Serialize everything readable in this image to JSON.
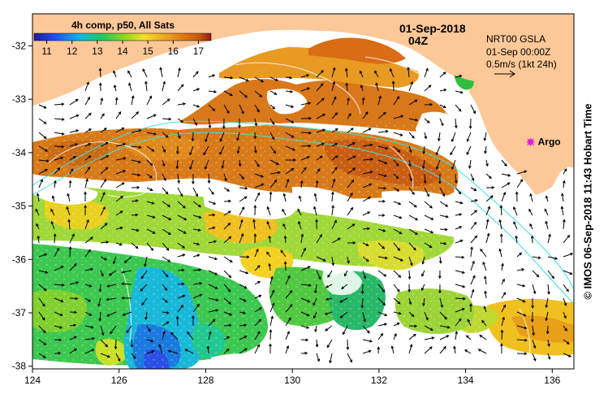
{
  "map": {
    "title_date": "01-Sep-2018",
    "title_time": "04Z",
    "colorbar_title": "4h comp, p50, All Sats",
    "colorbar_ticks": [
      "11",
      "12",
      "13",
      "14",
      "15",
      "16",
      "17"
    ],
    "colorbar_range": [
      10.5,
      17.5
    ],
    "gsla_label": "NRT00 GSLA",
    "gsla_time": "01-Sep 00:00Z",
    "vector_scale_label": "0.5m/s (1kt 24h)",
    "argo_label": "Argo",
    "side_credit": "© IMOS 06-Sep-2018 11:43 Hobart Time",
    "lon_ticks": [
      "124",
      "126",
      "128",
      "130",
      "132",
      "134",
      "136"
    ],
    "lat_ticks": [
      "-32",
      "-33",
      "-34",
      "-35",
      "-36",
      "-37",
      "-38"
    ],
    "lon_range": [
      124,
      136.5
    ],
    "lat_range": [
      -38.05,
      -31.4
    ],
    "colors": {
      "land": "#fdc897",
      "cloud": "#ffffff",
      "argo_marker": "#e01ee0",
      "contour": "#ffffff",
      "bathymetry": "#40e0e0",
      "vector": "#000000"
    },
    "argo_position": {
      "lon": 135.5,
      "lat": -33.8
    }
  }
}
